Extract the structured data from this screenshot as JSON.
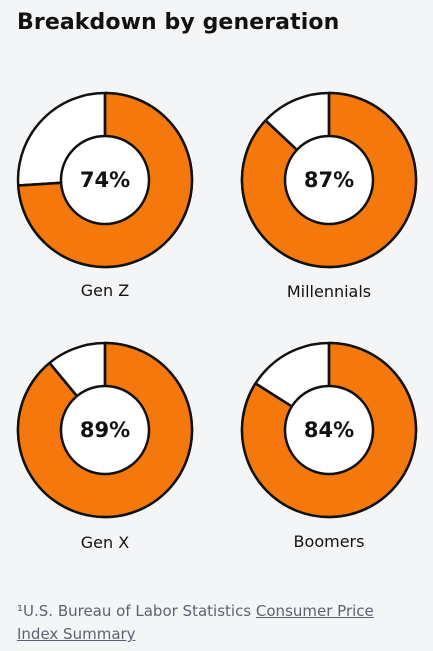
{
  "title": "Breakdown by generation",
  "colors": {
    "filled": "#f4780b",
    "empty": "#ffffff",
    "stroke": "#111111",
    "background": "#f4f5f7"
  },
  "chart_data": {
    "type": "pie",
    "title": "Breakdown by generation",
    "series": [
      {
        "name": "Gen Z",
        "value": 74,
        "label": "74%"
      },
      {
        "name": "Millennials",
        "value": 87,
        "label": "87%"
      },
      {
        "name": "Gen X",
        "value": 89,
        "label": "89%"
      },
      {
        "name": "Boomers",
        "value": 84,
        "label": "84%"
      }
    ]
  },
  "footnote": {
    "prefix": "¹U.S. Bureau of Labor Statistics ",
    "link_text": "Consumer Price Index Summary"
  }
}
